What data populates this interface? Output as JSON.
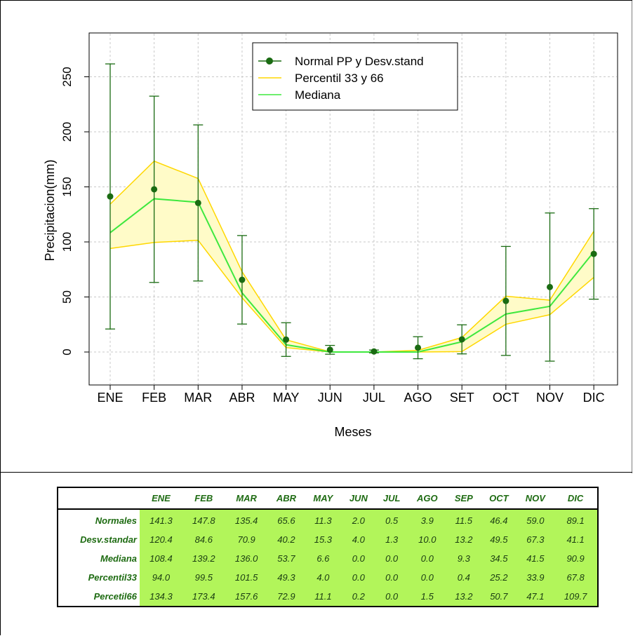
{
  "chart_data": {
    "type": "line",
    "title": "",
    "xlabel": "Meses",
    "ylabel": "Precipitacion(mm)",
    "categories": [
      "ENE",
      "FEB",
      "MAR",
      "ABR",
      "MAY",
      "JUN",
      "JUL",
      "AGO",
      "SET",
      "OCT",
      "NOV",
      "DIC"
    ],
    "ylim": [
      -30,
      290
    ],
    "yticks": [
      0,
      50,
      100,
      150,
      200,
      250
    ],
    "grid": true,
    "legend_position": "top-right",
    "series": [
      {
        "name": "Normal PP y Desv.stand",
        "values": [
          141.3,
          147.8,
          135.4,
          65.6,
          11.3,
          2.0,
          0.5,
          3.9,
          11.5,
          46.4,
          59.0,
          89.1
        ],
        "error": [
          120.4,
          84.6,
          70.9,
          40.2,
          15.3,
          4.0,
          1.3,
          10.0,
          13.2,
          49.5,
          67.3,
          41.1
        ],
        "color": "#1a6b12"
      },
      {
        "name": "Percentil 33 y 66",
        "lower": [
          94.0,
          99.5,
          101.5,
          49.3,
          4.0,
          0.0,
          0.0,
          0.0,
          0.4,
          25.2,
          33.9,
          67.8
        ],
        "upper": [
          134.3,
          173.4,
          157.6,
          72.9,
          11.1,
          0.2,
          0.0,
          1.5,
          13.2,
          50.7,
          47.1,
          109.7
        ],
        "color": "#ffd700",
        "fill": "#fffbc8"
      },
      {
        "name": "Mediana",
        "values": [
          108.4,
          139.2,
          136.0,
          53.7,
          6.6,
          0.0,
          0.0,
          0.0,
          9.3,
          34.5,
          41.5,
          90.9
        ],
        "color": "#3ee83e"
      }
    ]
  },
  "table": {
    "columns": [
      "ENE",
      "FEB",
      "MAR",
      "ABR",
      "MAY",
      "JUN",
      "JUL",
      "AGO",
      "SEP",
      "OCT",
      "NOV",
      "DIC"
    ],
    "rows": [
      {
        "label": "Normales",
        "values": [
          "141.3",
          "147.8",
          "135.4",
          "65.6",
          "11.3",
          "2.0",
          "0.5",
          "3.9",
          "11.5",
          "46.4",
          "59.0",
          "89.1"
        ]
      },
      {
        "label": "Desv.standar",
        "values": [
          "120.4",
          "84.6",
          "70.9",
          "40.2",
          "15.3",
          "4.0",
          "1.3",
          "10.0",
          "13.2",
          "49.5",
          "67.3",
          "41.1"
        ]
      },
      {
        "label": "Mediana",
        "values": [
          "108.4",
          "139.2",
          "136.0",
          "53.7",
          "6.6",
          "0.0",
          "0.0",
          "0.0",
          "9.3",
          "34.5",
          "41.5",
          "90.9"
        ]
      },
      {
        "label": "Percentil33",
        "values": [
          "94.0",
          "99.5",
          "101.5",
          "49.3",
          "4.0",
          "0.0",
          "0.0",
          "0.0",
          "0.4",
          "25.2",
          "33.9",
          "67.8"
        ]
      },
      {
        "label": "Percetil66",
        "values": [
          "134.3",
          "173.4",
          "157.6",
          "72.9",
          "11.1",
          "0.2",
          "0.0",
          "1.5",
          "13.2",
          "50.7",
          "47.1",
          "109.7"
        ]
      }
    ]
  }
}
